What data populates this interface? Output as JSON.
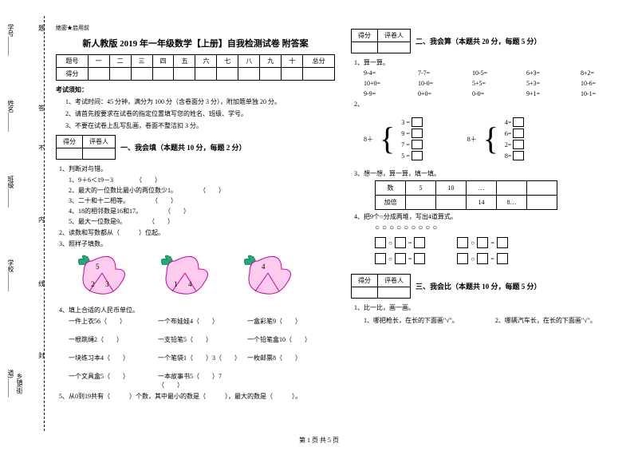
{
  "secret": "绝密★启用前",
  "title": "新人教版 2019 年一年级数学【上册】自我检测试卷 附答案",
  "sidebar": {
    "xuehao": "学号______",
    "xingming": "姓名______",
    "banji": "班级______",
    "xuexiao": "学校______",
    "xiangzhen": "乡镇(街道)______",
    "ti": "题",
    "da": "答",
    "nei": "内",
    "xian": "线",
    "feng": "封",
    "bu": "不"
  },
  "scoreHeaders": [
    "题号",
    "一",
    "二",
    "三",
    "四",
    "五",
    "六",
    "七",
    "八",
    "九",
    "十",
    "总分"
  ],
  "scoreRow": "得分",
  "instructionsTitle": "考试须知：",
  "instructions": [
    "1、考试时间：45 分钟，满分为 100 分（含卷面分 3 分），附加题单独 20 分。",
    "2、请首先按要求在试卷的指定位置填写您的姓名、班级、学号。",
    "3、不要在试卷上乱写乱画，卷面不整洁扣 3 分。"
  ],
  "smallTableH1": "得分",
  "smallTableH2": "评卷人",
  "section1": {
    "title": "一、我会填（本题共 10 分，每题 2 分）",
    "q1": "1、判断对与错。",
    "q1items": [
      "1、9＋6＜19－3",
      "2、最大的一位数比最小的两位数少1。",
      "3、二十和十二相等。",
      "4、18的相邻数是16和17。",
      "5、最大一位数是9。"
    ],
    "q2": "2、读数和写数都从（　　　）位起。",
    "q3": "3、照样子填数。",
    "peach": {
      "p1": [
        "5",
        "2",
        "3"
      ],
      "p2": [
        "",
        "1",
        "4"
      ],
      "p3": [
        "4",
        "",
        ""
      ]
    },
    "q4": "4、填上合适的人民币单位。",
    "q4items": [
      "一件上衣56（　　）",
      "一个布娃娃4（　　）",
      "一盒彩笔9（　　）",
      "一根跳绳2（　　）",
      "一支铅笔5（　　）",
      "一个铅笔盒10（　　）",
      "一块练习本4（　　）",
      "一个笔袋1（　　）3（　　）",
      "一枚邮票8（　　）",
      "一个文具盒5（　　）",
      "一本故事书5（　　）7（　　）"
    ],
    "q5": "5、从0到19共有（　　　）个数，其中最小的数是（　　　），最大的数是（　　　）。"
  },
  "section2": {
    "title": "二、我会算（本题共 20 分，每题 5 分）",
    "q1": "1、算一算。",
    "calcs": [
      "9-4=",
      "7-7=",
      "10-5=",
      "6+3=",
      "8+2=",
      "10+0=",
      "10-0=",
      "5+5=",
      "5+3=",
      "10-6=",
      "9-9=",
      "0+0=",
      "0-0=",
      "9+1=",
      "10-1="
    ],
    "q2": "2、",
    "brace1Label": "8＋",
    "brace1": [
      "3 =",
      "9 =",
      "7 =",
      "5 ="
    ],
    "brace2Label": "8＋",
    "brace2": [
      "4=",
      "6=",
      "2=",
      "8="
    ],
    "q3": "3、想一想，算一算，填一填。",
    "thinkH": [
      "数",
      "5",
      "10",
      "…"
    ],
    "thinkR": [
      "加倍",
      "",
      "14",
      "8…"
    ],
    "q4": "4、把9个○分成两堆，写出4道算式。",
    "circles": "○○○○○○○○○"
  },
  "section3": {
    "title": "三、我会比（本题共 10 分，每题 5 分）",
    "q1": "1、比一比，画一画。",
    "q1a": "1、哪把枪长，在长的下面画\"√\"。",
    "q1b": "2、哪辆汽车长，在长的下面画\"√\"。"
  },
  "footer": "第 1 页 共 5 页"
}
